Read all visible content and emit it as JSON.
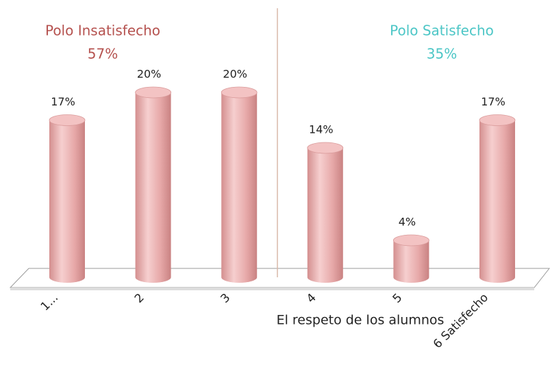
{
  "chart_data": {
    "type": "bar",
    "categories": [
      "1...",
      "2",
      "3",
      "4",
      "5",
      "6 Satisfecho"
    ],
    "values": [
      17,
      20,
      20,
      14,
      4,
      17
    ],
    "value_labels": [
      "17%",
      "20%",
      "20%",
      "14%",
      "4%",
      "17%"
    ],
    "color": "#e8a8a8",
    "xlabel": "El respeto de los alumnos",
    "annotations": [
      {
        "text": "Polo Insatisfecho",
        "share": "57%",
        "color": "#b5524f"
      },
      {
        "text": "Polo Satisfecho",
        "share": "35%",
        "color": "#4cc6c6"
      }
    ]
  }
}
